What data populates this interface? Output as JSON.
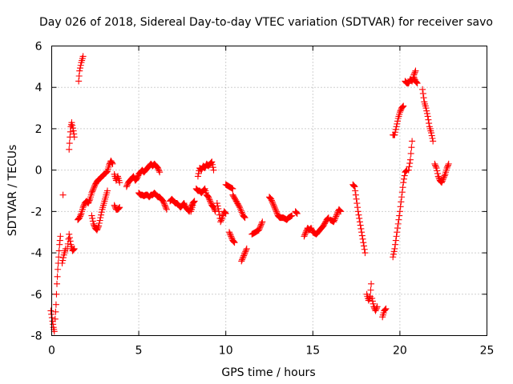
{
  "chart_data": {
    "type": "scatter",
    "title": "Day 026 of 2018, Sidereal Day-to-day VTEC variation (SDTVAR) for receiver savo",
    "xlabel": "GPS time / hours",
    "ylabel": "SDTVAR / TECUs",
    "xlim": [
      0,
      25
    ],
    "ylim": [
      -8,
      6
    ],
    "xticks": [
      0,
      5,
      10,
      15,
      20,
      25
    ],
    "yticks": [
      -8,
      -6,
      -4,
      -2,
      0,
      2,
      4,
      6
    ],
    "xtick_labels": [
      "0",
      "5",
      "10",
      "15",
      "20",
      "25"
    ],
    "ytick_labels": [
      "-8",
      "-6",
      "-4",
      "-2",
      "0",
      "2",
      "4",
      "6"
    ],
    "grid": true,
    "marker": "plus",
    "color": "#ff0000",
    "segments": [
      [
        [
          -0.05,
          -6.8
        ],
        [
          0.05,
          -7.3
        ],
        [
          0.1,
          -7.6
        ],
        [
          0.15,
          -7.8
        ]
      ],
      [
        [
          0.2,
          -7.2
        ],
        [
          0.25,
          -6.5
        ],
        [
          0.3,
          -5.5
        ],
        [
          0.35,
          -4.8
        ],
        [
          0.4,
          -4.2
        ],
        [
          0.45,
          -3.6
        ],
        [
          0.5,
          -3.2
        ]
      ],
      [
        [
          0.6,
          -4.5
        ],
        [
          0.7,
          -4.1
        ],
        [
          0.8,
          -3.8
        ]
      ],
      [
        [
          0.65,
          -1.2
        ]
      ],
      [
        [
          0.9,
          -3.8
        ],
        [
          1.0,
          -3.1
        ],
        [
          1.1,
          -3.6
        ],
        [
          1.2,
          -3.9
        ],
        [
          1.3,
          -3.8
        ]
      ],
      [
        [
          1.0,
          1.0
        ],
        [
          1.05,
          1.6
        ],
        [
          1.1,
          2.1
        ],
        [
          1.15,
          2.3
        ],
        [
          1.25,
          1.9
        ],
        [
          1.3,
          1.6
        ]
      ],
      [
        [
          1.55,
          4.3
        ],
        [
          1.6,
          4.8
        ],
        [
          1.7,
          5.2
        ],
        [
          1.8,
          5.5
        ]
      ],
      [
        [
          1.5,
          -2.4
        ],
        [
          1.6,
          -2.3
        ],
        [
          1.7,
          -2.1
        ],
        [
          1.8,
          -1.8
        ],
        [
          1.9,
          -1.6
        ],
        [
          2.0,
          -1.5
        ],
        [
          2.1,
          -1.6
        ],
        [
          2.2,
          -1.4
        ],
        [
          2.3,
          -1.1
        ],
        [
          2.4,
          -0.9
        ],
        [
          2.5,
          -0.7
        ],
        [
          2.6,
          -0.55
        ],
        [
          2.7,
          -0.45
        ],
        [
          2.8,
          -0.4
        ],
        [
          2.9,
          -0.3
        ],
        [
          3.0,
          -0.2
        ],
        [
          3.1,
          -0.15
        ],
        [
          3.2,
          -0.05
        ],
        [
          3.3,
          0.25
        ],
        [
          3.4,
          0.45
        ],
        [
          3.5,
          0.3
        ]
      ],
      [
        [
          2.3,
          -2.2
        ],
        [
          2.4,
          -2.6
        ],
        [
          2.5,
          -2.8
        ],
        [
          2.6,
          -2.9
        ],
        [
          2.7,
          -2.7
        ],
        [
          2.8,
          -2.3
        ],
        [
          2.9,
          -1.9
        ],
        [
          3.0,
          -1.6
        ],
        [
          3.1,
          -1.3
        ],
        [
          3.2,
          -1.0
        ]
      ],
      [
        [
          3.6,
          -0.2
        ],
        [
          3.7,
          -0.5
        ],
        [
          3.8,
          -0.3
        ],
        [
          3.9,
          -0.6
        ]
      ],
      [
        [
          3.6,
          -1.7
        ],
        [
          3.7,
          -1.9
        ],
        [
          3.8,
          -1.9
        ],
        [
          3.9,
          -1.8
        ]
      ],
      [
        [
          4.3,
          -0.8
        ],
        [
          4.4,
          -0.6
        ],
        [
          4.5,
          -0.5
        ],
        [
          4.6,
          -0.4
        ],
        [
          4.7,
          -0.3
        ],
        [
          4.8,
          -0.5
        ],
        [
          4.9,
          -0.4
        ],
        [
          5.0,
          -0.2
        ],
        [
          5.1,
          -0.1
        ],
        [
          5.2,
          0.0
        ],
        [
          5.3,
          -0.1
        ],
        [
          5.4,
          0.0
        ],
        [
          5.5,
          0.1
        ],
        [
          5.6,
          0.2
        ],
        [
          5.7,
          0.3
        ],
        [
          5.8,
          0.2
        ],
        [
          5.9,
          0.3
        ],
        [
          6.0,
          0.2
        ],
        [
          6.1,
          0.1
        ],
        [
          6.2,
          -0.1
        ]
      ],
      [
        [
          5.0,
          -1.1
        ],
        [
          5.1,
          -1.2
        ],
        [
          5.2,
          -1.2
        ],
        [
          5.3,
          -1.25
        ],
        [
          5.4,
          -1.2
        ],
        [
          5.5,
          -1.2
        ],
        [
          5.6,
          -1.3
        ],
        [
          5.7,
          -1.2
        ],
        [
          5.8,
          -1.2
        ],
        [
          5.9,
          -1.1
        ],
        [
          6.0,
          -1.2
        ],
        [
          6.1,
          -1.3
        ],
        [
          6.2,
          -1.3
        ],
        [
          6.3,
          -1.4
        ],
        [
          6.4,
          -1.5
        ],
        [
          6.5,
          -1.7
        ],
        [
          6.6,
          -1.9
        ]
      ],
      [
        [
          6.8,
          -1.5
        ],
        [
          6.9,
          -1.4
        ],
        [
          7.0,
          -1.5
        ],
        [
          7.1,
          -1.6
        ],
        [
          7.2,
          -1.6
        ],
        [
          7.3,
          -1.7
        ],
        [
          7.4,
          -1.8
        ],
        [
          7.5,
          -1.7
        ],
        [
          7.6,
          -1.6
        ],
        [
          7.7,
          -1.8
        ],
        [
          7.8,
          -1.9
        ],
        [
          7.9,
          -2.0
        ],
        [
          8.0,
          -1.8
        ],
        [
          8.1,
          -1.6
        ],
        [
          8.2,
          -1.5
        ]
      ],
      [
        [
          8.0,
          -2.0
        ],
        [
          8.1,
          -1.7
        ]
      ],
      [
        [
          8.3,
          -0.9
        ],
        [
          8.4,
          -1.0
        ],
        [
          8.5,
          -1.0
        ],
        [
          8.6,
          -1.1
        ],
        [
          8.7,
          -1.0
        ],
        [
          8.8,
          -0.9
        ],
        [
          8.9,
          -1.2
        ],
        [
          9.0,
          -1.3
        ],
        [
          9.1,
          -1.5
        ],
        [
          9.2,
          -1.7
        ],
        [
          9.3,
          -1.8
        ],
        [
          9.4,
          -2.0
        ]
      ],
      [
        [
          8.4,
          -0.3
        ],
        [
          8.5,
          0.1
        ],
        [
          8.6,
          0.0
        ],
        [
          8.7,
          0.2
        ],
        [
          8.8,
          0.1
        ],
        [
          8.9,
          0.3
        ],
        [
          9.0,
          0.2
        ],
        [
          9.1,
          0.3
        ],
        [
          9.2,
          0.4
        ],
        [
          9.3,
          0.0
        ]
      ],
      [
        [
          9.5,
          -1.6
        ],
        [
          9.6,
          -2.0
        ],
        [
          9.7,
          -2.5
        ],
        [
          9.8,
          -2.3
        ],
        [
          9.9,
          -2.0
        ],
        [
          10.0,
          -2.1
        ]
      ],
      [
        [
          10.0,
          -0.7
        ],
        [
          10.2,
          -0.8
        ],
        [
          10.4,
          -0.9
        ]
      ],
      [
        [
          10.2,
          -3.0
        ],
        [
          10.3,
          -3.2
        ],
        [
          10.4,
          -3.4
        ],
        [
          10.5,
          -3.5
        ]
      ],
      [
        [
          10.4,
          -1.2
        ],
        [
          10.6,
          -1.5
        ],
        [
          10.8,
          -1.8
        ],
        [
          11.0,
          -2.2
        ],
        [
          11.1,
          -2.3
        ]
      ],
      [
        [
          10.9,
          -4.4
        ],
        [
          11.0,
          -4.2
        ],
        [
          11.1,
          -4.0
        ],
        [
          11.2,
          -3.8
        ]
      ],
      [
        [
          11.5,
          -3.1
        ],
        [
          11.7,
          -3.0
        ],
        [
          11.9,
          -2.9
        ],
        [
          12.0,
          -2.7
        ],
        [
          12.1,
          -2.5
        ]
      ],
      [
        [
          12.5,
          -1.3
        ],
        [
          12.6,
          -1.4
        ],
        [
          12.7,
          -1.6
        ],
        [
          12.8,
          -1.8
        ],
        [
          12.9,
          -2.0
        ],
        [
          13.0,
          -2.2
        ],
        [
          13.1,
          -2.3
        ],
        [
          13.3,
          -2.3
        ],
        [
          13.5,
          -2.4
        ],
        [
          13.6,
          -2.3
        ],
        [
          13.8,
          -2.2
        ]
      ],
      [
        [
          14.0,
          -2.0
        ],
        [
          14.1,
          -2.1
        ]
      ],
      [
        [
          14.5,
          -3.2
        ],
        [
          14.6,
          -3.0
        ],
        [
          14.7,
          -2.8
        ],
        [
          14.8,
          -2.9
        ],
        [
          14.9,
          -2.8
        ],
        [
          15.0,
          -3.0
        ],
        [
          15.2,
          -3.1
        ],
        [
          15.4,
          -2.9
        ],
        [
          15.6,
          -2.7
        ],
        [
          15.8,
          -2.4
        ],
        [
          15.9,
          -2.3
        ]
      ],
      [
        [
          16.0,
          -2.4
        ],
        [
          16.2,
          -2.5
        ],
        [
          16.3,
          -2.3
        ],
        [
          16.4,
          -2.1
        ],
        [
          16.5,
          -1.9
        ],
        [
          16.6,
          -2.0
        ]
      ],
      [
        [
          17.3,
          -0.7
        ],
        [
          17.4,
          -0.8
        ],
        [
          17.5,
          -1.4
        ],
        [
          17.6,
          -2.0
        ],
        [
          17.7,
          -2.5
        ],
        [
          17.8,
          -3.0
        ],
        [
          17.9,
          -3.5
        ],
        [
          18.0,
          -4.0
        ]
      ],
      [
        [
          18.1,
          -6.0
        ],
        [
          18.2,
          -6.3
        ],
        [
          18.3,
          -6.1
        ],
        [
          18.35,
          -5.5
        ]
      ],
      [
        [
          18.4,
          -6.2
        ],
        [
          18.5,
          -6.6
        ],
        [
          18.6,
          -6.8
        ],
        [
          18.7,
          -6.6
        ]
      ],
      [
        [
          19.0,
          -7.1
        ],
        [
          19.1,
          -6.8
        ],
        [
          19.2,
          -6.7
        ]
      ],
      [
        [
          19.6,
          -4.2
        ],
        [
          19.7,
          -3.8
        ],
        [
          19.8,
          -3.2
        ],
        [
          19.9,
          -2.6
        ],
        [
          20.0,
          -2.0
        ],
        [
          20.1,
          -1.3
        ],
        [
          20.2,
          -0.6
        ],
        [
          20.3,
          -0.1
        ],
        [
          20.4,
          0.0
        ]
      ],
      [
        [
          20.5,
          0.0
        ],
        [
          20.6,
          0.5
        ],
        [
          20.7,
          1.4
        ]
      ],
      [
        [
          19.6,
          1.7
        ],
        [
          19.7,
          1.7
        ],
        [
          19.8,
          2.1
        ],
        [
          19.9,
          2.5
        ],
        [
          20.0,
          2.8
        ],
        [
          20.1,
          3.0
        ],
        [
          20.2,
          3.1
        ]
      ],
      [
        [
          20.3,
          4.3
        ],
        [
          20.4,
          4.2
        ],
        [
          20.5,
          4.2
        ],
        [
          20.6,
          4.4
        ],
        [
          20.7,
          4.3
        ],
        [
          20.8,
          4.5
        ],
        [
          20.9,
          4.3
        ],
        [
          21.0,
          4.2
        ]
      ],
      [
        [
          20.9,
          4.8
        ],
        [
          20.8,
          4.6
        ]
      ],
      [
        [
          21.3,
          3.9
        ],
        [
          21.4,
          3.3
        ],
        [
          21.5,
          3.0
        ],
        [
          21.6,
          2.6
        ],
        [
          21.7,
          2.1
        ],
        [
          21.8,
          1.8
        ],
        [
          21.9,
          1.4
        ]
      ],
      [
        [
          22.0,
          0.3
        ],
        [
          22.1,
          0.1
        ],
        [
          22.2,
          -0.3
        ],
        [
          22.3,
          -0.5
        ],
        [
          22.4,
          -0.6
        ],
        [
          22.5,
          -0.4
        ],
        [
          22.6,
          -0.2
        ],
        [
          22.7,
          0.1
        ],
        [
          22.8,
          0.3
        ]
      ]
    ]
  }
}
